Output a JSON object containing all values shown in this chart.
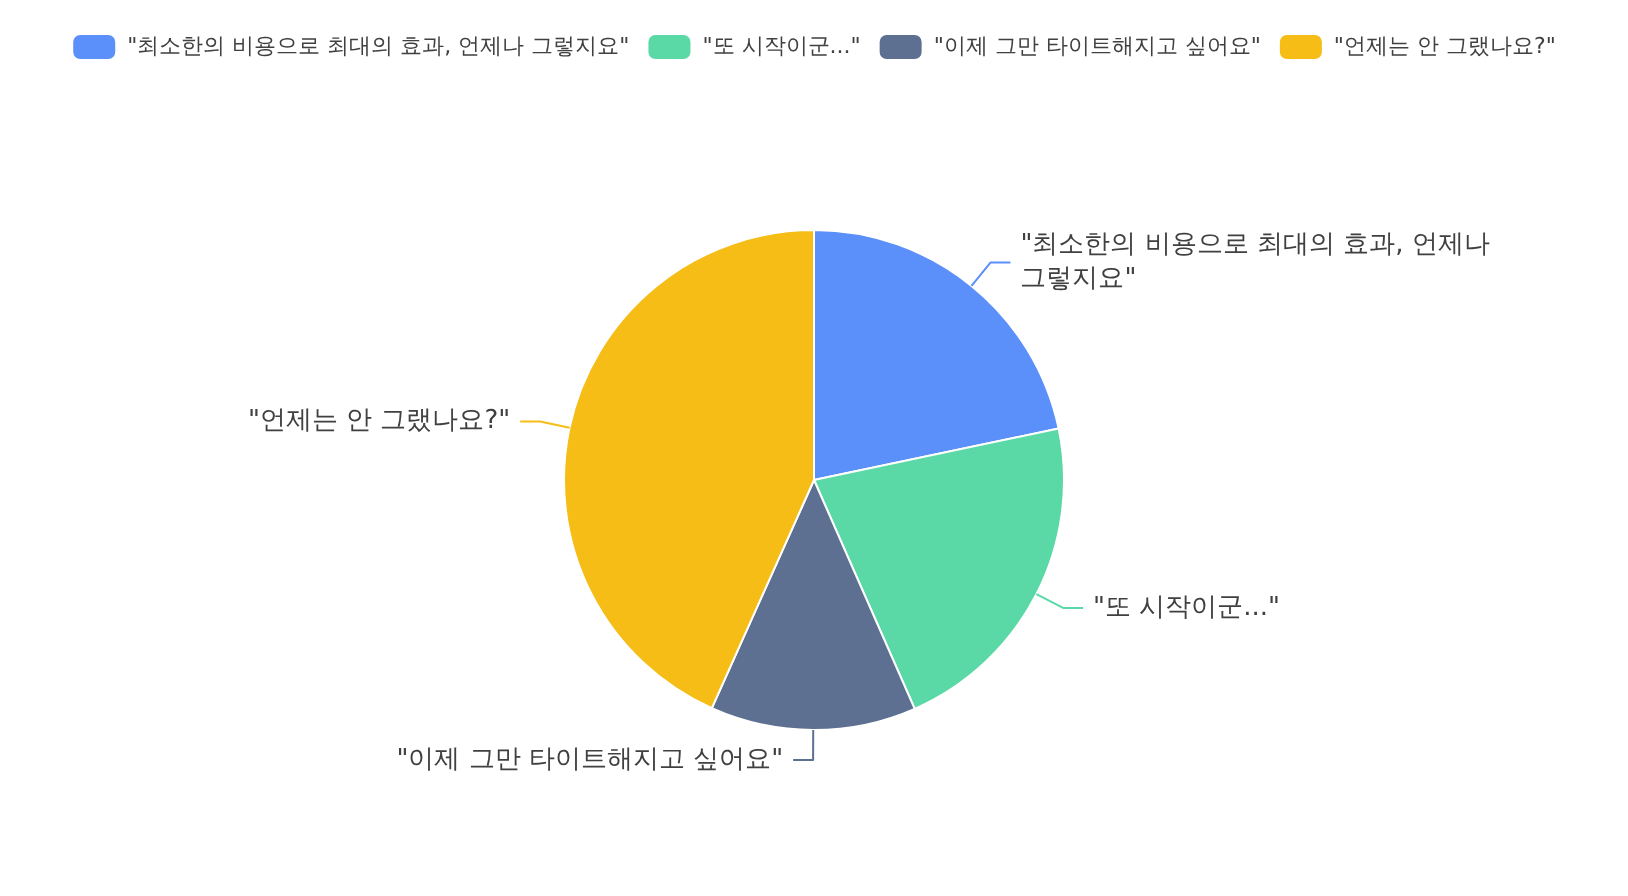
{
  "chart_data": {
    "type": "pie",
    "categories": [
      "\"최소한의 비용으로 최대의 효과, 언제나 그렇지요\"",
      "\"또 시작이군...\"",
      "\"이제 그만 타이트해지고 싶어요\"",
      "\"언제는 안 그랬나요?\""
    ],
    "values": [
      21.7,
      21.7,
      13.3,
      43.3
    ],
    "colors": [
      "#5b8ff9",
      "#5ad8a6",
      "#5d7092",
      "#f6bd16"
    ],
    "legend": "top"
  }
}
